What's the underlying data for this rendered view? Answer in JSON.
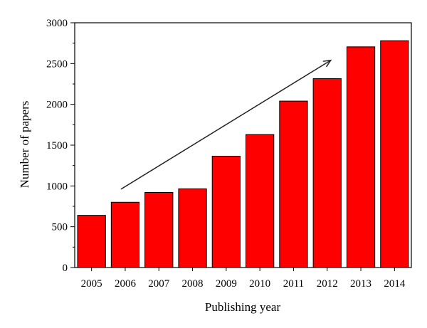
{
  "chart_data": {
    "type": "bar",
    "title": "",
    "xlabel": "Publishing year",
    "ylabel": "Number of papers",
    "categories": [
      "2005",
      "2006",
      "2007",
      "2008",
      "2009",
      "2010",
      "2011",
      "2012",
      "2013",
      "2014"
    ],
    "values": [
      640,
      800,
      920,
      965,
      1365,
      1630,
      2040,
      2315,
      2705,
      2780
    ],
    "ylim": [
      0,
      3000
    ],
    "yticks": [
      "0",
      "500",
      "1000",
      "1500",
      "2000",
      "2500",
      "3000"
    ],
    "grid": false,
    "legend": "none",
    "bar_color": "#ff0000",
    "annotation": "trend-arrow",
    "trend_arrow": {
      "from": {
        "category": "2006",
        "value": 960
      },
      "to": {
        "category": "2012",
        "value": 2540
      }
    }
  }
}
